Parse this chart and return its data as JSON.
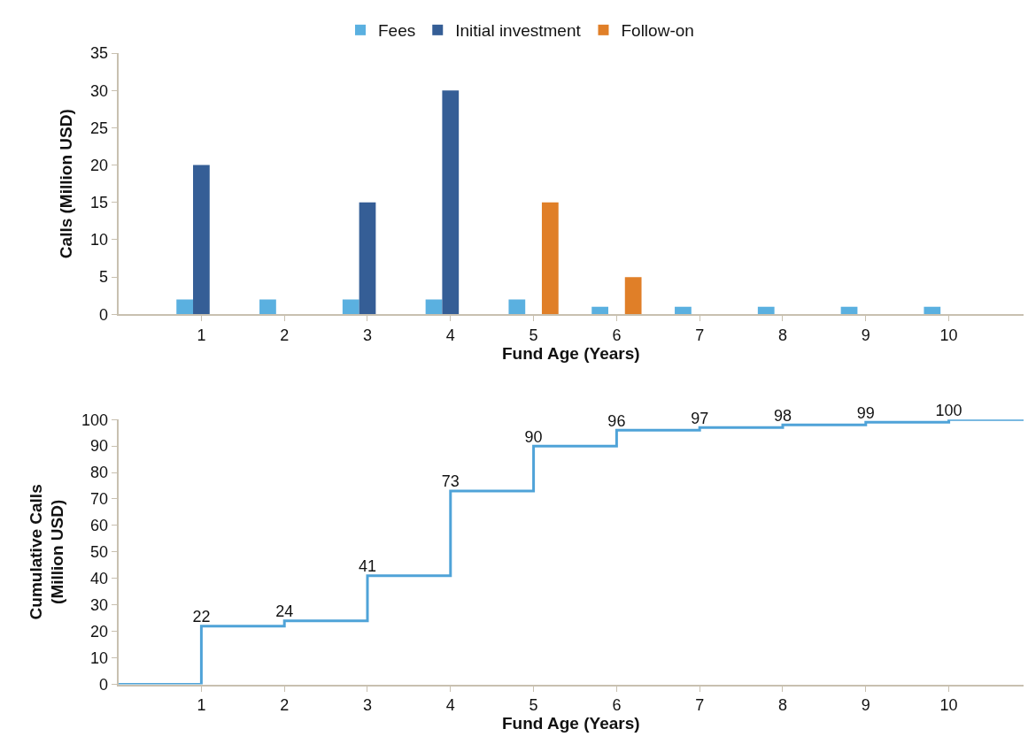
{
  "chart_data": [
    {
      "type": "bar",
      "xlabel": "Fund Age (Years)",
      "ylabel": "Calls (Million USD)",
      "x": [
        1,
        2,
        3,
        4,
        5,
        6,
        7,
        8,
        9,
        10
      ],
      "xlim": [
        0,
        10.9
      ],
      "xticks": [
        1,
        2,
        3,
        4,
        5,
        6,
        7,
        8,
        9,
        10
      ],
      "ylim": [
        0,
        35
      ],
      "yticks": [
        0,
        5,
        10,
        15,
        20,
        25,
        30,
        35
      ],
      "legend": "top",
      "series": [
        {
          "name": "Fees",
          "color": "#5ab0e0",
          "values": [
            2,
            2,
            2,
            2,
            2,
            1,
            1,
            1,
            1,
            1
          ]
        },
        {
          "name": "Initial investment",
          "color": "#355e96",
          "values": [
            20,
            null,
            15,
            30,
            null,
            null,
            null,
            null,
            null,
            null
          ]
        },
        {
          "name": "Follow-on",
          "color": "#e07f28",
          "values": [
            null,
            null,
            null,
            null,
            15,
            5,
            null,
            null,
            null,
            null
          ]
        }
      ]
    },
    {
      "type": "step",
      "xlabel": "Fund Age (Years)",
      "ylabel": "Cumulative Calls\n(Million USD)",
      "x": [
        0,
        1,
        2,
        3,
        4,
        5,
        6,
        7,
        8,
        9,
        10,
        10.9
      ],
      "xlim": [
        0,
        10.9
      ],
      "xticks": [
        1,
        2,
        3,
        4,
        5,
        6,
        7,
        8,
        9,
        10
      ],
      "ylim": [
        0,
        100
      ],
      "yticks": [
        0,
        10,
        20,
        30,
        40,
        50,
        60,
        70,
        80,
        90,
        100
      ],
      "legend": false,
      "marker": "none",
      "series": [
        {
          "color": "#4fa3d8",
          "values": [
            0,
            22,
            24,
            41,
            73,
            90,
            96,
            97,
            98,
            99,
            100,
            100
          ],
          "value_labels": [
            null,
            "22",
            "24",
            "41",
            "73",
            "90",
            "96",
            "97",
            "98",
            "99",
            "100",
            null
          ]
        }
      ]
    }
  ]
}
